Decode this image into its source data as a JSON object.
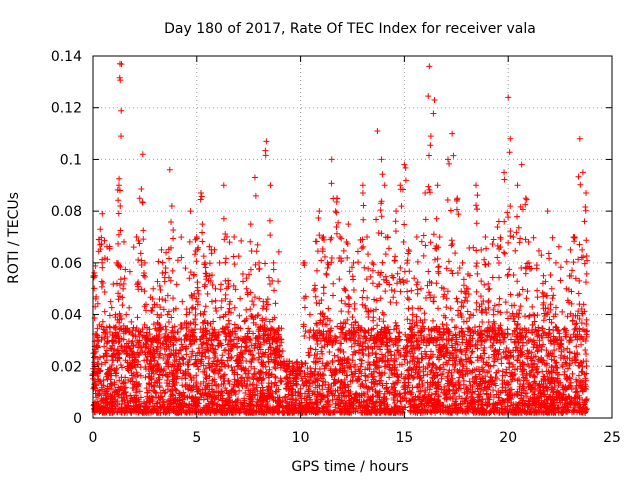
{
  "chart_data": {
    "type": "scatter",
    "title": "Day 180 of 2017, Rate Of TEC Index for receiver vala",
    "xlabel": "GPS time / hours",
    "ylabel": "ROTI / TECUs",
    "xlim": [
      0,
      25
    ],
    "ylim": [
      0,
      0.14
    ],
    "x_ticks": [
      0,
      5,
      10,
      15,
      20,
      25
    ],
    "x_tick_labels": [
      "0",
      "5",
      "10",
      "15",
      "20",
      "25"
    ],
    "y_ticks": [
      0,
      0.02,
      0.04,
      0.06,
      0.08,
      0.1,
      0.12,
      0.14
    ],
    "y_tick_labels": [
      "0",
      "0.02",
      "0.04",
      "0.06",
      "0.08",
      "0.1",
      "0.12",
      "0.14"
    ],
    "grid": true,
    "marker": "+",
    "marker_color": "#ff0000",
    "series": [
      {
        "name": "ROTI",
        "x": [
          0.05,
          0.1,
          0.2,
          0.3,
          0.35,
          0.45,
          0.6,
          0.7,
          0.85,
          1.0,
          1.15,
          1.25,
          1.3,
          1.35,
          1.45,
          1.6,
          1.8,
          1.95,
          2.1,
          2.25,
          2.4,
          2.5,
          2.6,
          2.75,
          2.9,
          3.1,
          3.3,
          3.5,
          3.7,
          3.8,
          3.95,
          4.1,
          4.3,
          4.5,
          4.7,
          4.85,
          5.0,
          5.2,
          5.4,
          5.55,
          5.7,
          5.9,
          6.1,
          6.3,
          6.45,
          6.6,
          6.8,
          7.0,
          7.2,
          7.4,
          7.6,
          7.8,
          8.0,
          8.2,
          8.35,
          8.55,
          8.7,
          8.85,
          9.0,
          9.2,
          9.4,
          9.6,
          9.8,
          10.0,
          10.2,
          10.45,
          10.7,
          10.9,
          11.1,
          11.3,
          11.5,
          11.75,
          11.9,
          12.1,
          12.3,
          12.55,
          12.8,
          13.0,
          13.2,
          13.45,
          13.7,
          13.9,
          14.05,
          14.2,
          14.4,
          14.6,
          14.8,
          15.0,
          15.2,
          15.4,
          15.6,
          15.8,
          16.0,
          16.2,
          16.45,
          16.6,
          16.7,
          16.9,
          17.1,
          17.3,
          17.55,
          17.8,
          18.0,
          18.2,
          18.45,
          18.7,
          18.9,
          19.1,
          19.3,
          19.55,
          19.8,
          20.0,
          20.1,
          20.25,
          20.45,
          20.65,
          20.85,
          21.0,
          21.2,
          21.45,
          21.7,
          21.9,
          22.1,
          22.3,
          22.55,
          22.8,
          23.0,
          23.2,
          23.45,
          23.6,
          23.75
        ],
        "y": [
          0.012,
          0.055,
          0.03,
          0.018,
          0.073,
          0.079,
          0.025,
          0.015,
          0.045,
          0.035,
          0.06,
          0.09,
          0.137,
          0.109,
          0.05,
          0.04,
          0.02,
          0.028,
          0.07,
          0.085,
          0.102,
          0.06,
          0.035,
          0.025,
          0.05,
          0.04,
          0.065,
          0.058,
          0.096,
          0.082,
          0.03,
          0.02,
          0.045,
          0.04,
          0.08,
          0.055,
          0.07,
          0.087,
          0.06,
          0.03,
          0.065,
          0.05,
          0.06,
          0.09,
          0.07,
          0.045,
          0.07,
          0.035,
          0.03,
          0.05,
          0.075,
          0.093,
          0.06,
          0.045,
          0.107,
          0.09,
          0.06,
          0.03,
          0.028,
          0.022,
          0.02,
          0.018,
          0.015,
          0.018,
          0.06,
          0.04,
          0.05,
          0.08,
          0.07,
          0.06,
          0.1,
          0.085,
          0.07,
          0.05,
          0.075,
          0.06,
          0.035,
          0.09,
          0.07,
          0.06,
          0.111,
          0.1,
          0.09,
          0.07,
          0.055,
          0.08,
          0.09,
          0.098,
          0.065,
          0.04,
          0.07,
          0.05,
          0.087,
          0.136,
          0.123,
          0.09,
          0.07,
          0.05,
          0.1,
          0.11,
          0.085,
          0.06,
          0.05,
          0.04,
          0.09,
          0.065,
          0.07,
          0.05,
          0.04,
          0.076,
          0.095,
          0.124,
          0.108,
          0.07,
          0.09,
          0.098,
          0.085,
          0.06,
          0.04,
          0.035,
          0.055,
          0.08,
          0.05,
          0.06,
          0.03,
          0.05,
          0.065,
          0.07,
          0.108,
          0.095,
          0.087
        ]
      }
    ],
    "background_band": {
      "description": "dense band of background values",
      "y_min": 0.002,
      "y_max": 0.035,
      "x_min": 0.0,
      "x_max": 23.8
    }
  }
}
